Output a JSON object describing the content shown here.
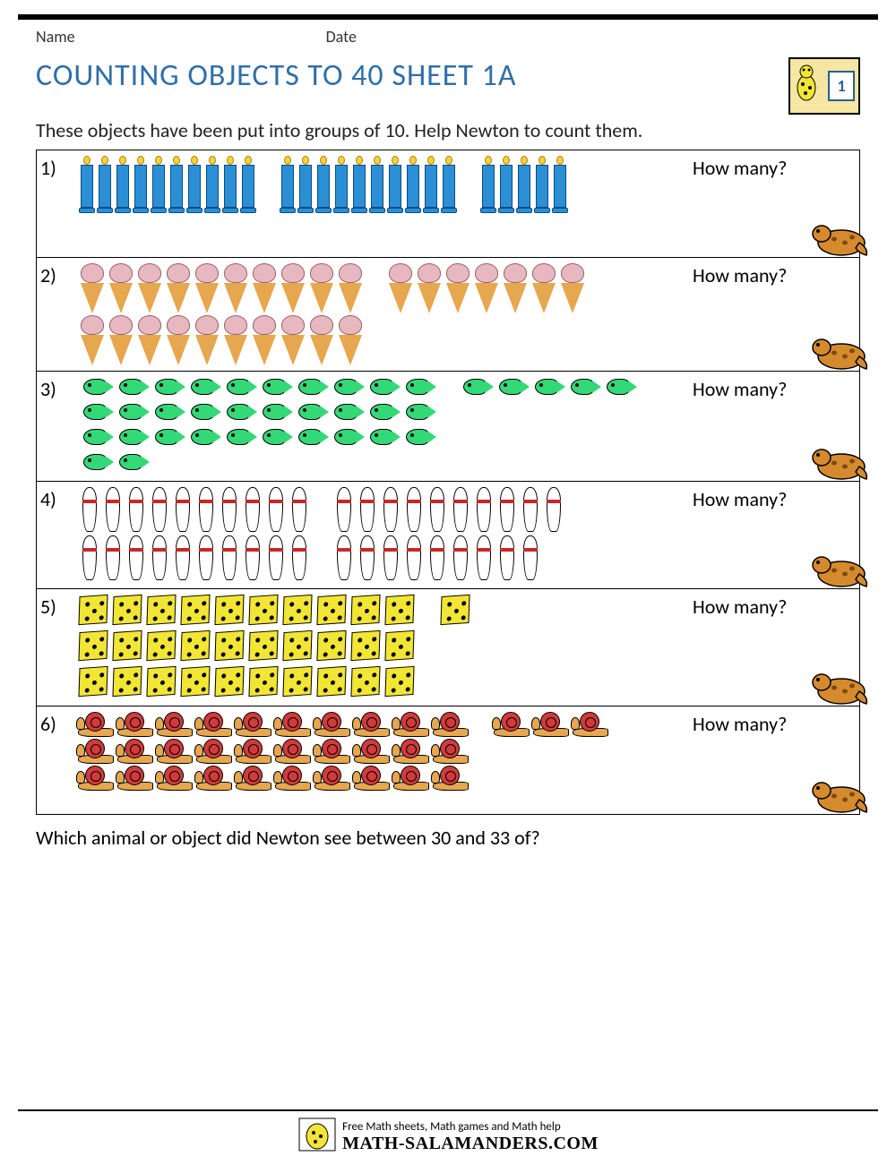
{
  "header": {
    "name_label": "Name",
    "date_label": "Date"
  },
  "badge": {
    "grade": "1"
  },
  "title": "COUNTING OBJECTS TO 40 SHEET 1A",
  "instructions": "These objects have been put into groups of 10. Help Newton to count them.",
  "how_many_label": "How many?",
  "problems": [
    {
      "num": "1)",
      "icon": "candle",
      "rows": [
        [
          10,
          10,
          5
        ]
      ]
    },
    {
      "num": "2)",
      "icon": "cone",
      "rows": [
        [
          10,
          7
        ],
        [
          10
        ]
      ]
    },
    {
      "num": "3)",
      "icon": "fish",
      "rows": [
        [
          10,
          5
        ],
        [
          10
        ],
        [
          10
        ],
        [
          2
        ]
      ]
    },
    {
      "num": "4)",
      "icon": "pin",
      "rows": [
        [
          10,
          10
        ],
        [
          10,
          9
        ]
      ]
    },
    {
      "num": "5)",
      "icon": "die",
      "rows": [
        [
          10,
          1
        ],
        [
          10
        ],
        [
          10
        ]
      ]
    },
    {
      "num": "6)",
      "icon": "snail",
      "rows": [
        [
          10,
          3
        ],
        [
          10
        ],
        [
          10
        ]
      ]
    }
  ],
  "bottom_question": "Which animal or object did Newton see between 30 and 33 of?",
  "footer": {
    "tagline": "Free Math sheets, Math games and Math help",
    "brand": "MATH-SALAMANDERS.COM"
  },
  "colors": {
    "title": "#2f6fa8",
    "candle_body": "#2b8fd6",
    "candle_flame": "#f6d040",
    "cone_scoop": "#e7b8c0",
    "cone_waffle": "#e6a74e",
    "fish": "#33d977",
    "pin_stripe": "#c62828",
    "die": "#f2e635",
    "snail_shell": "#d13b3b",
    "snail_body": "#e6a74e",
    "salamander": "#d68a2e",
    "badge_bg": "#f5e6a3"
  }
}
